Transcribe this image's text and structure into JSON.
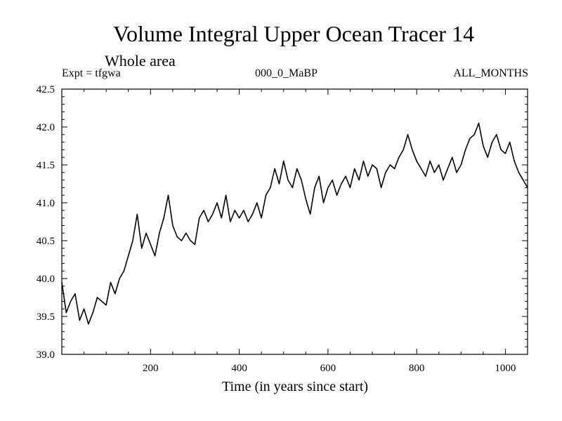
{
  "header": {
    "title": "Volume Integral Upper Ocean Tracer 14",
    "subtitle": "Whole area",
    "expt": "Expt = tfgwa",
    "center_label": "000_0_MaBP",
    "right_label": "ALL_MONTHS"
  },
  "chart_data": {
    "type": "line",
    "title": "Volume Integral Upper Ocean Tracer 14",
    "subtitle": "Whole area",
    "xlabel": "Time (in years since start)",
    "ylabel": "",
    "xlim": [
      0,
      1050
    ],
    "ylim": [
      39.0,
      42.5
    ],
    "xticks": [
      200,
      400,
      600,
      800,
      1000
    ],
    "xtick_labels": [
      "200",
      "400",
      "600",
      "800",
      "1000"
    ],
    "yticks": [
      39.0,
      39.5,
      40.0,
      40.5,
      41.0,
      41.5,
      42.0,
      42.5
    ],
    "ytick_labels": [
      "39.0",
      "39.5",
      "40.0",
      "40.5",
      "41.0",
      "41.5",
      "42.0",
      "42.5"
    ],
    "grid": false,
    "series": [
      {
        "name": "Tracer 14",
        "color": "#000000",
        "x": [
          0,
          10,
          20,
          30,
          40,
          50,
          60,
          70,
          80,
          90,
          100,
          110,
          120,
          130,
          140,
          150,
          160,
          170,
          180,
          190,
          200,
          210,
          220,
          230,
          240,
          250,
          260,
          270,
          280,
          290,
          300,
          310,
          320,
          330,
          340,
          350,
          360,
          370,
          380,
          390,
          400,
          410,
          420,
          430,
          440,
          450,
          460,
          470,
          480,
          490,
          500,
          510,
          520,
          530,
          540,
          550,
          560,
          570,
          580,
          590,
          600,
          610,
          620,
          630,
          640,
          650,
          660,
          670,
          680,
          690,
          700,
          710,
          720,
          730,
          740,
          750,
          760,
          770,
          780,
          790,
          800,
          810,
          820,
          830,
          840,
          850,
          860,
          870,
          880,
          890,
          900,
          910,
          920,
          930,
          940,
          950,
          960,
          970,
          980,
          990,
          1000,
          1010,
          1020,
          1030,
          1040,
          1050
        ],
        "y": [
          39.95,
          39.55,
          39.7,
          39.8,
          39.45,
          39.6,
          39.4,
          39.55,
          39.75,
          39.7,
          39.65,
          39.95,
          39.8,
          40.0,
          40.1,
          40.3,
          40.5,
          40.85,
          40.4,
          40.6,
          40.45,
          40.3,
          40.6,
          40.8,
          41.1,
          40.7,
          40.55,
          40.5,
          40.6,
          40.5,
          40.45,
          40.8,
          40.9,
          40.75,
          40.85,
          41.0,
          40.8,
          41.1,
          40.75,
          40.9,
          40.8,
          40.9,
          40.75,
          40.85,
          41.0,
          40.8,
          41.1,
          41.2,
          41.45,
          41.25,
          41.55,
          41.3,
          41.2,
          41.45,
          41.3,
          41.05,
          40.85,
          41.2,
          41.35,
          41.0,
          41.2,
          41.3,
          41.1,
          41.25,
          41.35,
          41.2,
          41.45,
          41.3,
          41.55,
          41.35,
          41.5,
          41.45,
          41.2,
          41.4,
          41.5,
          41.45,
          41.6,
          41.7,
          41.9,
          41.7,
          41.55,
          41.45,
          41.35,
          41.55,
          41.4,
          41.5,
          41.3,
          41.45,
          41.6,
          41.4,
          41.5,
          41.7,
          41.85,
          41.9,
          42.05,
          41.75,
          41.6,
          41.8,
          41.9,
          41.7,
          41.65,
          41.8,
          41.55,
          41.4,
          41.3,
          41.2
        ]
      }
    ]
  }
}
